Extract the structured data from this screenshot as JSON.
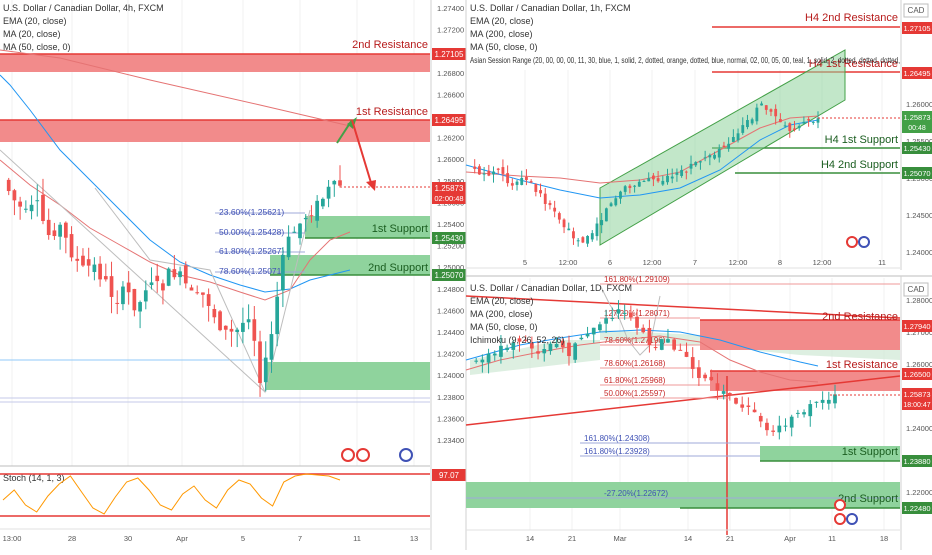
{
  "left": {
    "title": "U.S. Dollar / Canadian Dollar, 4h, FXCM",
    "indicators": [
      "EMA (20, close)",
      "MA (20, close)",
      "MA (50, close, 0)"
    ],
    "price_ticks": [
      "1.27400",
      "1.27200",
      "1.27000",
      "1.26800",
      "1.26600",
      "1.26400",
      "1.26200",
      "1.26000",
      "1.25800",
      "1.25600",
      "1.25400",
      "1.25200",
      "1.25000",
      "1.24800",
      "1.24600",
      "1.24400",
      "1.24200",
      "1.24000",
      "1.23800",
      "1.23600",
      "1.23400"
    ],
    "labels": {
      "r2_tag": "1.27105",
      "r1_tag": "1.26495",
      "last_tag": "1.25873",
      "last_countdown": "02:00:48",
      "s1_tag": "1.25430",
      "s2_tag": "1.25070",
      "stoch_tag": "97.07"
    },
    "zones": {
      "r2": "2nd Resistance",
      "r1": "1st Resistance",
      "s1": "1st Support",
      "s2": "2nd Support"
    },
    "fibs": [
      "23.60%(1.25621)",
      "50.00%(1.25428)",
      "61.80%(1.25267)",
      "78.60%(1.25071)"
    ],
    "stoch_title": "Stoch (14, 1, 3)",
    "x_ticks": [
      "13:00",
      "28",
      "30",
      "Apr",
      "5",
      "7",
      "11",
      "13"
    ]
  },
  "rt": {
    "title": "U.S. Dollar / Canadian Dollar, 1h, FXCM",
    "currency": "CAD",
    "indicators": [
      "EMA (20, close)",
      "MA (200, close)",
      "MA (50, close, 0)",
      "Asian Session Range (20, 00, 00, 00, 11, 30, blue, 1, solid, 2, dotted, orange, dotted, blue, normal, 02, 00, 05, 00, teal, 1, solid, 2, dotted, dotted, dotted,"
    ],
    "price_ticks": [
      "1.26000",
      "1.25500",
      "1.25000",
      "1.24500",
      "1.24000"
    ],
    "labels": {
      "r2_tag": "1.27105",
      "r1_tag": "1.26495",
      "last_tag": "1.25873",
      "last_countdown": "00:48",
      "s1_tag": "1.25430",
      "s2_tag": "1.25070"
    },
    "zones": {
      "r2": "H4 2nd Resistance",
      "r1": "H4 1st Resistance",
      "s1": "H4 1st Support",
      "s2": "H4 2nd Support"
    },
    "x_ticks": [
      "5",
      "12:00",
      "6",
      "12:00",
      "7",
      "12:00",
      "8",
      "12:00",
      "11"
    ]
  },
  "rb": {
    "title": "U.S. Dollar / Canadian Dollar, 1D, FXCM",
    "currency": "CAD",
    "indicators": [
      "EMA (20, close)",
      "MA (200, close)",
      "MA (50, close, 0)",
      "Ichimoku (9, 26, 52, 26)"
    ],
    "price_ticks": [
      "1.28000",
      "1.27000",
      "1.26000",
      "1.25000",
      "1.24000",
      "1.23000",
      "1.22000"
    ],
    "labels": {
      "r2_tag": "1.27940",
      "r1_tag": "1.26500",
      "last_tag": "1.25873",
      "last_countdown": "18:00:47",
      "s1_tag": "1.23880",
      "s2_tag": "1.22480"
    },
    "zones": {
      "r2": "2nd Resistance",
      "r1": "1st Resistance",
      "s1": "1st Support",
      "s2": "2nd Support"
    },
    "fibs": [
      "161.80%(1.29109)",
      "127.20%(1.28071)",
      "78.60%(1.27196)",
      "78.60%(1.26168)",
      "61.80%(1.25968)",
      "50.00%(1.25597)",
      "161.80%(1.24308)",
      "161.80%(1.23928)",
      "-27.20%(1.22672)"
    ],
    "x_ticks": [
      "14",
      "21",
      "Mar",
      "14",
      "21",
      "Apr",
      "11",
      "18"
    ]
  },
  "colors": {
    "up": "#26a69a",
    "down": "#ef5350",
    "red_zone": "#f28b8b",
    "green_zone": "#8fd39d",
    "red_line": "#e53935",
    "green_line": "#388e3c",
    "ma_blue": "#2196f3",
    "ma_red": "#e57373",
    "stoch": "#ff9800"
  },
  "chart_data": [
    {
      "type": "candlestick",
      "title": "U.S. Dollar / Canadian Dollar, 4h, FXCM",
      "ylim": [
        1.2335,
        1.2745
      ],
      "levels": [
        {
          "name": "2nd Resistance",
          "value": 1.27105
        },
        {
          "name": "1st Resistance",
          "value": 1.26495
        },
        {
          "name": "1st Support",
          "value": 1.2543
        },
        {
          "name": "2nd Support",
          "value": 1.2507
        }
      ],
      "last_price": 1.25873,
      "stoch_last": 97.07
    },
    {
      "type": "candlestick",
      "title": "U.S. Dollar / Canadian Dollar, 1h, FXCM",
      "ylim": [
        1.2385,
        1.2745
      ],
      "levels": [
        {
          "name": "H4 2nd Resistance",
          "value": 1.27105
        },
        {
          "name": "H4 1st Resistance",
          "value": 1.26495
        },
        {
          "name": "H4 1st Support",
          "value": 1.2543
        },
        {
          "name": "H4 2nd Support",
          "value": 1.2507
        }
      ],
      "last_price": 1.25873
    },
    {
      "type": "candlestick",
      "title": "U.S. Dollar / Canadian Dollar, 1D, FXCM",
      "ylim": [
        1.2195,
        1.2945
      ],
      "levels": [
        {
          "name": "2nd Resistance",
          "value": 1.2794
        },
        {
          "name": "1st Resistance",
          "value": 1.265
        },
        {
          "name": "1st Support",
          "value": 1.2388
        },
        {
          "name": "2nd Support",
          "value": 1.2248
        }
      ],
      "last_price": 1.25873
    }
  ]
}
